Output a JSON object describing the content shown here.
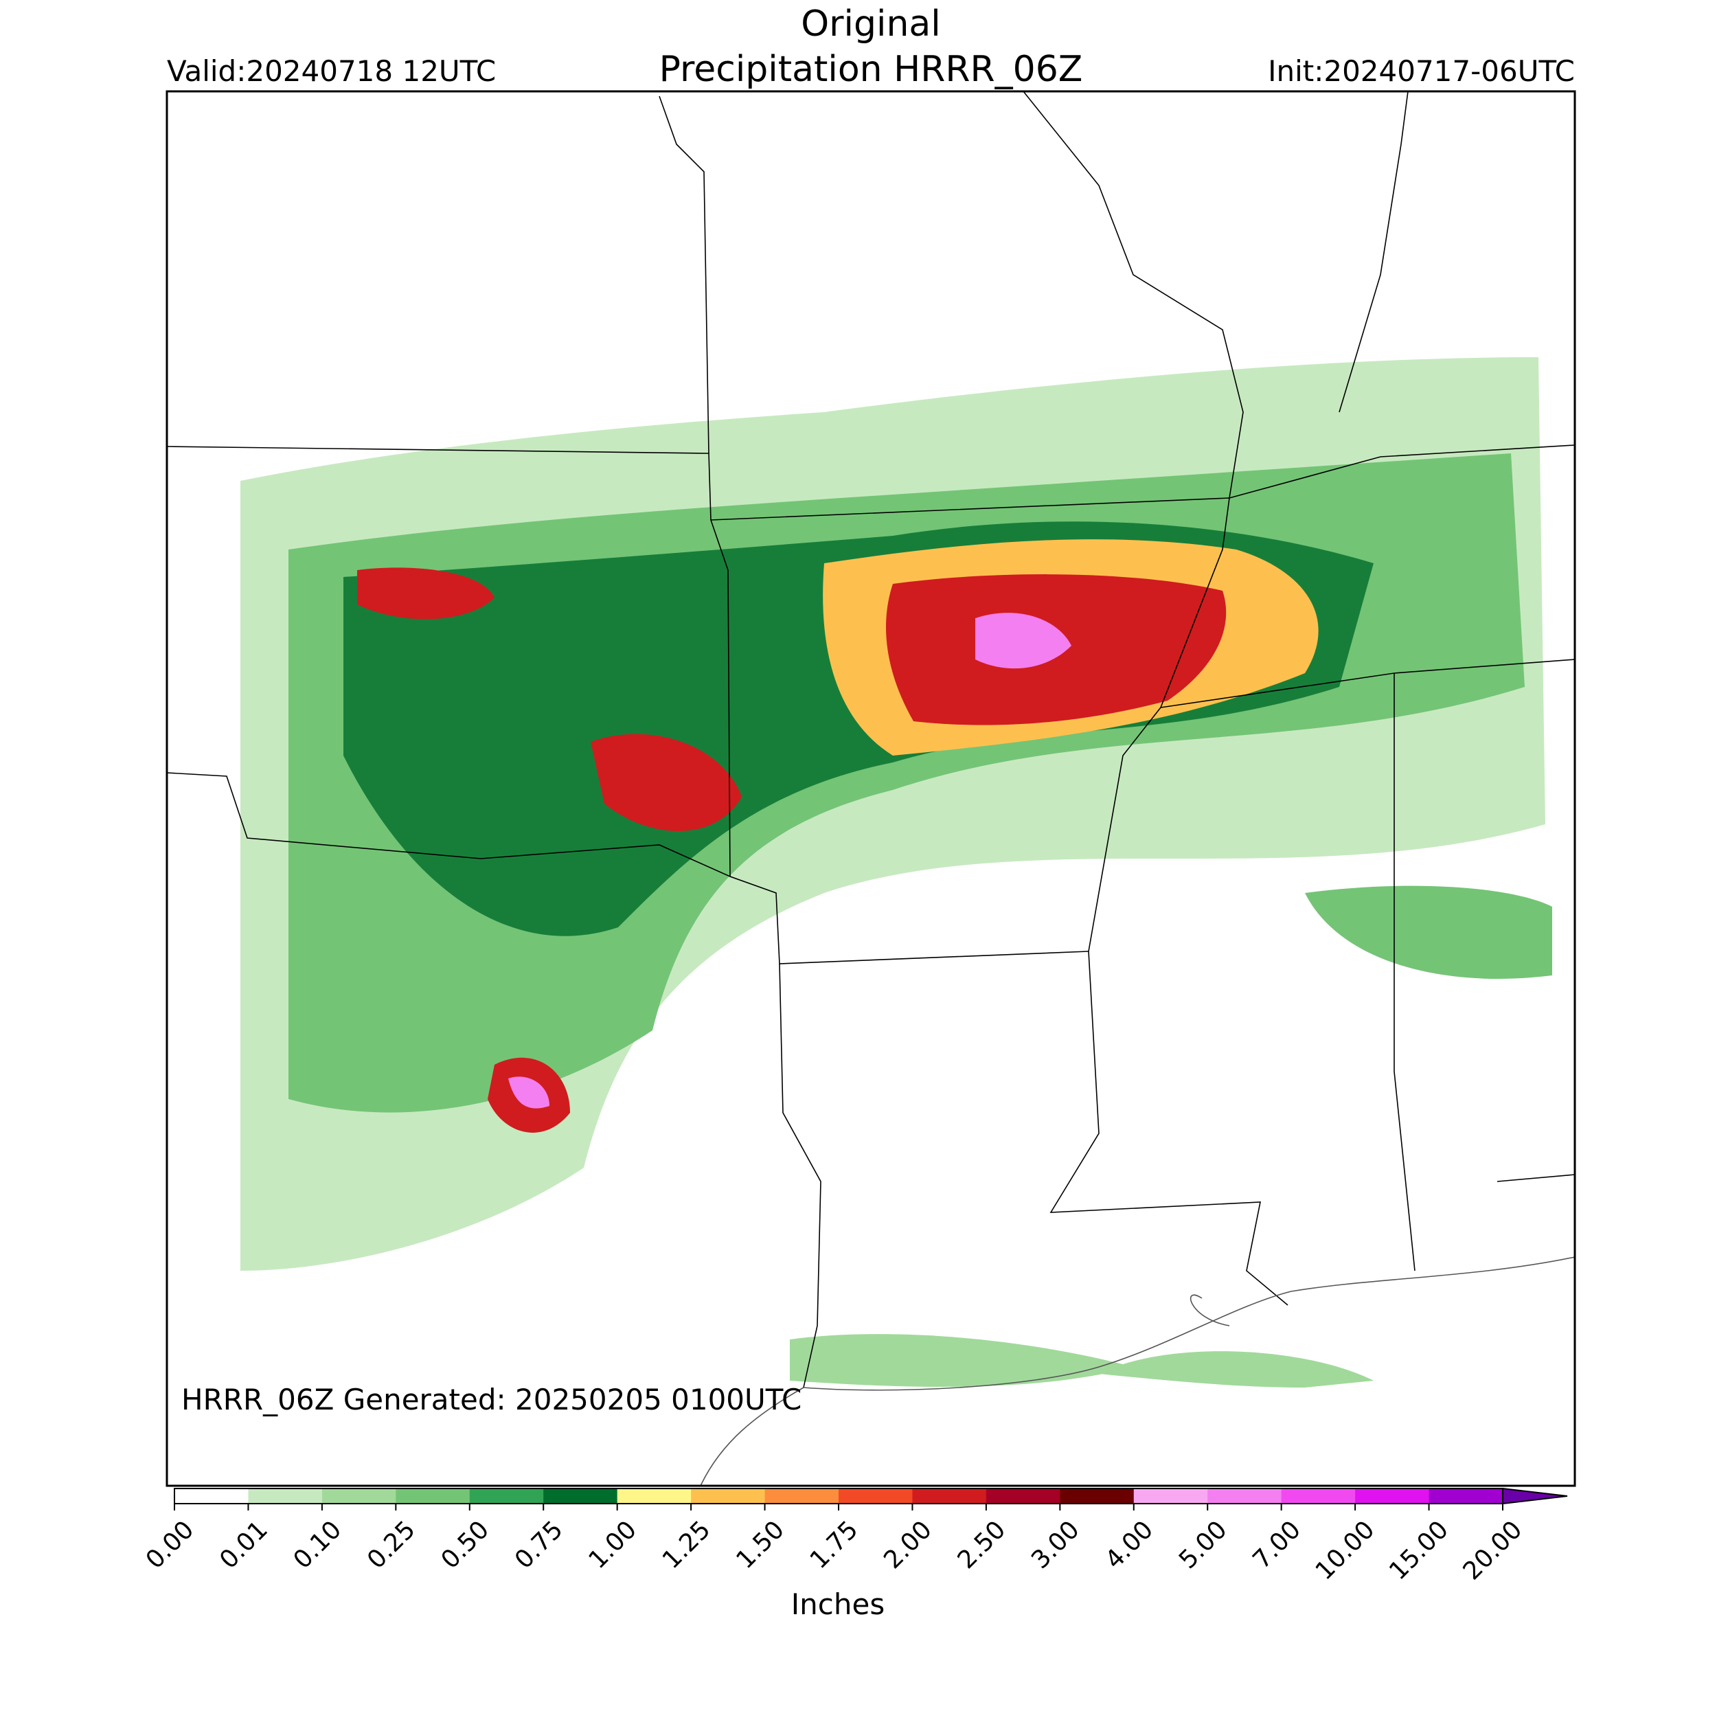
{
  "header": {
    "title_lines": [
      "Original",
      "Precipitation HRRR_06Z"
    ],
    "valid": "Valid:20240718 12UTC",
    "init": "Init:20240717-06UTC"
  },
  "annotation": "HRRR_06Z Generated: 20250205 0100UTC",
  "colorbar": {
    "label": "Inches",
    "ticks": [
      {
        "value": 0,
        "label": "0.00"
      },
      {
        "value": 0.01,
        "label": "0.01"
      },
      {
        "value": 0.1,
        "label": "0.10"
      },
      {
        "value": 0.25,
        "label": "0.25"
      },
      {
        "value": 0.5,
        "label": "0.50"
      },
      {
        "value": 0.75,
        "label": "0.75"
      },
      {
        "value": 1,
        "label": "1.00"
      },
      {
        "value": 1.25,
        "label": "1.25"
      },
      {
        "value": 1.5,
        "label": "1.50"
      },
      {
        "value": 1.75,
        "label": "1.75"
      },
      {
        "value": 2,
        "label": "2.00"
      },
      {
        "value": 2.5,
        "label": "2.50"
      },
      {
        "value": 3,
        "label": "3.00"
      },
      {
        "value": 4,
        "label": "4.00"
      },
      {
        "value": 5,
        "label": "5.00"
      },
      {
        "value": 7,
        "label": "7.00"
      },
      {
        "value": 10,
        "label": "10.00"
      },
      {
        "value": 15,
        "label": "15.00"
      },
      {
        "value": 20,
        "label": "20.00"
      }
    ],
    "colors": [
      "#ffffff",
      "#c7e9c0",
      "#a1d99b",
      "#74c476",
      "#31a354",
      "#006d2c",
      "#fff68a",
      "#fdc04f",
      "#fc8d3c",
      "#f24a26",
      "#d01c1e",
      "#a50026",
      "#6a0000",
      "#f8a8f0",
      "#f47ff0",
      "#f049f0",
      "#e012f0",
      "#a000d0"
    ],
    "extend_color": "#6a00a8"
  }
}
